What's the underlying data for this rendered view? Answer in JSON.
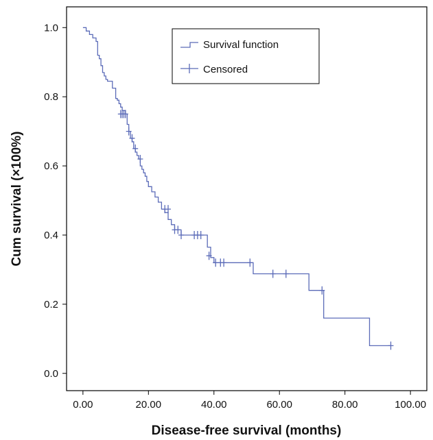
{
  "chart_data": {
    "type": "line",
    "subtype": "kaplan-meier step",
    "xlabel": "Disease-free survival (months)",
    "ylabel": "Cum survival (×100%)",
    "xlim": [
      -5,
      105
    ],
    "ylim": [
      -0.05,
      1.06
    ],
    "xticks": [
      0,
      20,
      40,
      60,
      80,
      100
    ],
    "xtick_labels": [
      "0.00",
      "20.00",
      "40.00",
      "60.00",
      "80.00",
      "100.00"
    ],
    "yticks": [
      0.0,
      0.2,
      0.4,
      0.6,
      0.8,
      1.0
    ],
    "ytick_labels": [
      "0.0",
      "0.2",
      "0.4",
      "0.6",
      "0.8",
      "1.0"
    ],
    "grid": false,
    "legend_position": "top-right",
    "colors": {
      "line": "#5b6bb8",
      "axis": "#000000"
    },
    "series": [
      {
        "name": "Survival function",
        "style": "step",
        "x": [
          0,
          1,
          2,
          3,
          4,
          4.5,
          5,
          5.5,
          6,
          6.5,
          7,
          7.5,
          8,
          9,
          10,
          10.5,
          11,
          11.5,
          12,
          13,
          13.5,
          14,
          14.5,
          15,
          15.5,
          16,
          16.5,
          17,
          17.5,
          18,
          18.5,
          19,
          19.5,
          20,
          21,
          22,
          23,
          24,
          25,
          26,
          27,
          28,
          30,
          38,
          39,
          40,
          52,
          69,
          73.5,
          87.5,
          94
        ],
        "y": [
          1.0,
          0.99,
          0.98,
          0.97,
          0.96,
          0.92,
          0.91,
          0.89,
          0.87,
          0.86,
          0.85,
          0.845,
          0.845,
          0.825,
          0.795,
          0.79,
          0.78,
          0.77,
          0.76,
          0.75,
          0.72,
          0.7,
          0.68,
          0.67,
          0.65,
          0.64,
          0.63,
          0.62,
          0.6,
          0.59,
          0.58,
          0.57,
          0.555,
          0.54,
          0.525,
          0.51,
          0.495,
          0.475,
          0.465,
          0.445,
          0.43,
          0.415,
          0.4,
          0.365,
          0.335,
          0.32,
          0.288,
          0.24,
          0.16,
          0.08,
          0.08
        ]
      },
      {
        "name": "Censored",
        "style": "plus-markers",
        "x": [
          11.5,
          12,
          12.5,
          13,
          14,
          15,
          16,
          17.5,
          25,
          26,
          28,
          29,
          30,
          34,
          35,
          36,
          38.5,
          40.5,
          42,
          43,
          51,
          58,
          62,
          73,
          94
        ],
        "y": [
          0.75,
          0.75,
          0.75,
          0.75,
          0.7,
          0.68,
          0.65,
          0.62,
          0.475,
          0.475,
          0.415,
          0.415,
          0.4,
          0.4,
          0.4,
          0.4,
          0.34,
          0.32,
          0.32,
          0.32,
          0.32,
          0.288,
          0.288,
          0.24,
          0.08
        ]
      }
    ]
  }
}
